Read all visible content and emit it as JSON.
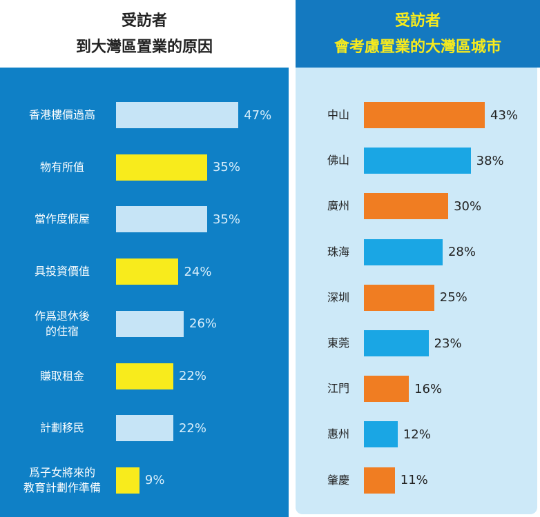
{
  "chart_data": [
    {
      "type": "bar",
      "orientation": "horizontal",
      "title": "受訪者",
      "subtitle": "到大灣區置業的原因",
      "categories": [
        "香港樓價過高",
        "物有所值",
        "當作度假屋",
        "具投資價值",
        "作爲退休後\n的住宿",
        "賺取租金",
        "計劃移民",
        "爲子女將來的\n教育計劃作準備"
      ],
      "values": [
        47,
        35,
        35,
        24,
        26,
        22,
        22,
        9
      ],
      "value_labels": [
        "47%",
        "35%",
        "35%",
        "24%",
        "26%",
        "22%",
        "22%",
        "9%"
      ],
      "colors": [
        "#c6e4f6",
        "#f8eb1c",
        "#c6e4f6",
        "#f8eb1c",
        "#c6e4f6",
        "#f8eb1c",
        "#c6e4f6",
        "#f8eb1c"
      ]
    },
    {
      "type": "bar",
      "orientation": "horizontal",
      "title": "受訪者",
      "subtitle": "會考慮置業的大灣區城市",
      "categories": [
        "中山",
        "佛山",
        "廣州",
        "珠海",
        "深圳",
        "東莞",
        "江門",
        "惠州",
        "肇慶"
      ],
      "values": [
        43,
        38,
        30,
        28,
        25,
        23,
        16,
        12,
        11
      ],
      "value_labels": [
        "43%",
        "38%",
        "30%",
        "28%",
        "25%",
        "23%",
        "16%",
        "12%",
        "11%"
      ],
      "colors": [
        "#f07d22",
        "#1aa6e4",
        "#f07d22",
        "#1aa6e4",
        "#f07d22",
        "#1aa6e4",
        "#f07d22",
        "#1aa6e4",
        "#f07d22"
      ]
    }
  ]
}
